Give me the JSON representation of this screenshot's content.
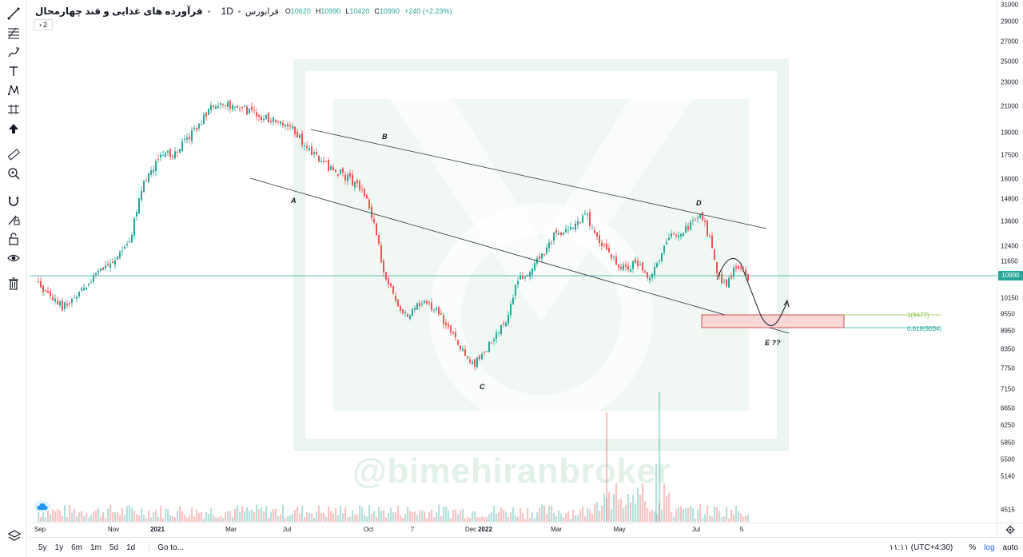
{
  "legend": {
    "symbol": "فرآورده های غذایی و قند چهارمحال",
    "resolution": "1D",
    "exchange": "فرابورس",
    "ohlc": [
      {
        "k": "O",
        "v": "10620"
      },
      {
        "k": "H",
        "v": "10990"
      },
      {
        "k": "L",
        "v": "10420"
      },
      {
        "k": "C",
        "v": "10990"
      }
    ],
    "change": "+240 (+2.23%)",
    "indicators_count": "2"
  },
  "price_axis": {
    "ticks": [
      "31000",
      "29000",
      "27000",
      "25000",
      "23000",
      "21000",
      "19000",
      "17500",
      "16000",
      "14800",
      "13600",
      "12400",
      "11650",
      "10150",
      "9550",
      "8950",
      "8350",
      "7750",
      "7150",
      "6650",
      "6250",
      "5850",
      "5500",
      "5140",
      "4515"
    ],
    "last_price": "10990"
  },
  "time_axis": {
    "ticks": [
      {
        "label": "Sep",
        "bold": false
      },
      {
        "label": "Nov",
        "bold": false
      },
      {
        "label": "2021",
        "bold": true
      },
      {
        "label": "Mar",
        "bold": false
      },
      {
        "label": "Jul",
        "bold": false
      },
      {
        "label": "Oct",
        "bold": false
      },
      {
        "label": "7",
        "bold": false
      },
      {
        "label": "Dec",
        "bold": false
      },
      {
        "label": "2022",
        "bold": true
      },
      {
        "label": "Mar",
        "bold": false
      },
      {
        "label": "May",
        "bold": false
      },
      {
        "label": "Jul",
        "bold": false
      },
      {
        "label": "5",
        "bold": false
      }
    ]
  },
  "annotations": {
    "wave_labels": [
      "A",
      "B",
      "C",
      "D",
      "E ??"
    ],
    "fib_levels": [
      {
        "label": "1(9477)",
        "color": "#8bc34a"
      },
      {
        "label": "0.618(9034)",
        "color": "#26a69a"
      }
    ]
  },
  "watermark": "@bimehiranbroker",
  "bottom_bar": {
    "ranges": [
      "5y",
      "1y",
      "6m",
      "1m",
      "5d",
      "1d"
    ],
    "goto": "Go to...",
    "timezone": "۱۱:۱۱ (UTC+4:30)",
    "percent": "%",
    "log": "log",
    "auto": "auto"
  },
  "colors": {
    "up": "#26a69a",
    "down": "#ef5350",
    "last_price_line": "#26a69a",
    "channel": "#2a2e39",
    "target_zone_fill": "#f8d7d7",
    "target_zone_border": "#c62828"
  },
  "toolbar": {
    "icons": [
      "crosshair-icon",
      "trend-line-icon",
      "fib-icon",
      "brush-icon",
      "text-icon",
      "pattern-icon",
      "prediction-icon",
      "cursor-arrow-icon",
      "ruler-icon",
      "zoom-icon",
      "magnet-icon",
      "lock-drawing-icon",
      "lock-icon",
      "eye-icon",
      "trash-icon"
    ]
  }
}
